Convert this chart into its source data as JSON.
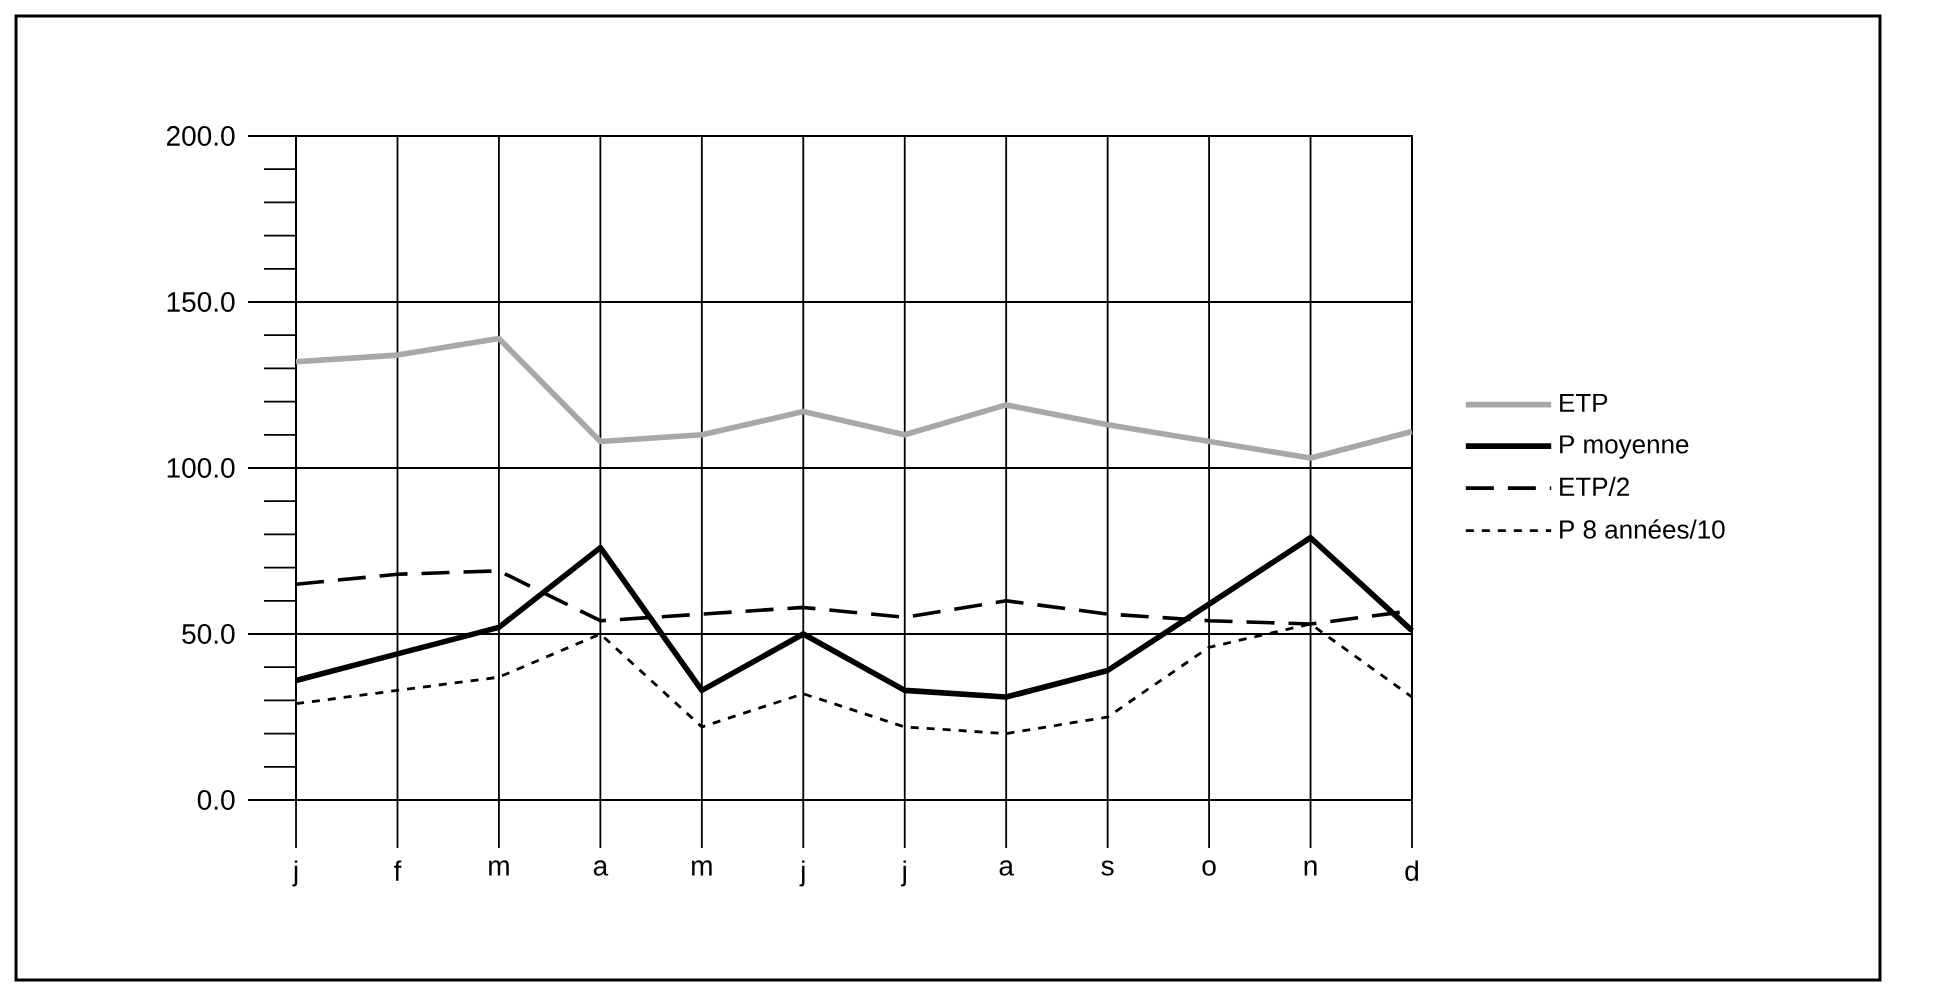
{
  "chart_data": {
    "type": "line",
    "categories": [
      "j",
      "f",
      "m",
      "a",
      "m",
      "j",
      "j",
      "a",
      "s",
      "o",
      "n",
      "d"
    ],
    "series": [
      {
        "name": "ETP",
        "color": "#a8a8a8",
        "line_style": "solid",
        "values": [
          132,
          134,
          139,
          108,
          110,
          117,
          110,
          119,
          113,
          108,
          103,
          111
        ]
      },
      {
        "name": "P moyenne",
        "color": "#000000",
        "line_style": "solid",
        "values": [
          36,
          44,
          52,
          76,
          33,
          50,
          33,
          31,
          39,
          59,
          79,
          51
        ]
      },
      {
        "name": "ETP/2",
        "color": "#000000",
        "line_style": "dashed",
        "values": [
          65,
          68,
          69,
          54,
          56,
          58,
          55,
          60,
          56,
          54,
          53,
          57
        ]
      },
      {
        "name": "P 8 années/10",
        "color": "#000000",
        "line_style": "dotted",
        "values": [
          29,
          33,
          37,
          50,
          22,
          32,
          22,
          20,
          25,
          46,
          53,
          31
        ]
      }
    ],
    "ylim": [
      0,
      200
    ],
    "yticks": [
      {
        "value": 0,
        "label": "0.0"
      },
      {
        "value": 10,
        "label": null
      },
      {
        "value": 20,
        "label": null
      },
      {
        "value": 30,
        "label": null
      },
      {
        "value": 40,
        "label": null
      },
      {
        "value": 50,
        "label": "50.0"
      },
      {
        "value": 60,
        "label": null
      },
      {
        "value": 70,
        "label": null
      },
      {
        "value": 80,
        "label": null
      },
      {
        "value": 90,
        "label": null
      },
      {
        "value": 100,
        "label": "100.0"
      },
      {
        "value": 110,
        "label": null
      },
      {
        "value": 120,
        "label": null
      },
      {
        "value": 130,
        "label": null
      },
      {
        "value": 140,
        "label": null
      },
      {
        "value": 150,
        "label": "150.0"
      },
      {
        "value": 160,
        "label": null
      },
      {
        "value": 170,
        "label": null
      },
      {
        "value": 180,
        "label": null
      },
      {
        "value": 190,
        "label": null
      },
      {
        "value": 200,
        "label": "200.0"
      }
    ],
    "grid": true,
    "legend": "right",
    "marker": "none"
  }
}
